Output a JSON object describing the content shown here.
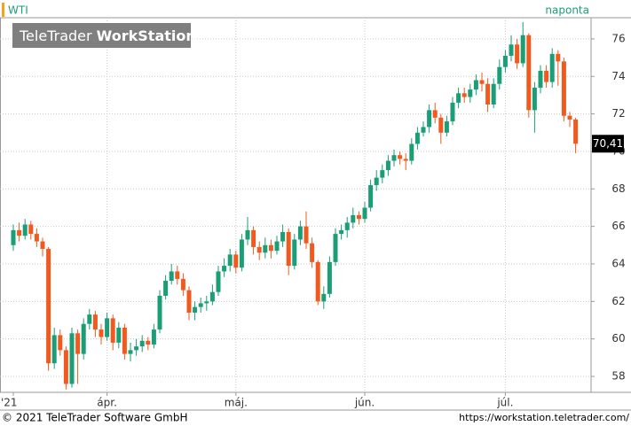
{
  "header": {
    "logo_brand": "TeleTrader",
    "logo_product": "WorkStation"
  },
  "footer": {
    "copyright": "© 2021 TeleTrader Software GmbH",
    "url": "https://workstation.teletrader.com/"
  },
  "chart_data": {
    "type": "candlestick",
    "title": "WTI",
    "subtitle": "naponta",
    "categories": [
      "'21",
      null,
      null,
      null,
      null,
      null,
      null,
      null,
      null,
      null,
      null,
      null,
      null,
      null,
      null,
      null,
      "ápr.",
      null,
      null,
      null,
      null,
      null,
      null,
      null,
      null,
      null,
      null,
      null,
      null,
      null,
      null,
      null,
      null,
      null,
      null,
      null,
      null,
      null,
      "máj.",
      null,
      null,
      null,
      null,
      null,
      null,
      null,
      null,
      null,
      null,
      null,
      null,
      null,
      null,
      null,
      null,
      null,
      null,
      null,
      null,
      null,
      "jún.",
      null,
      null,
      null,
      null,
      null,
      null,
      null,
      null,
      null,
      null,
      null,
      null,
      null,
      null,
      null,
      null,
      null,
      null,
      null,
      null,
      null,
      null,
      null,
      "júl.",
      null,
      null,
      null,
      null,
      null,
      null,
      null,
      null,
      null,
      null,
      null,
      null
    ],
    "series": [
      {
        "name": "WTI",
        "up_color": "#1b9e77",
        "down_color": "#f05a1e",
        "open": [
          65.0,
          65.8,
          65.5,
          66.1,
          65.6,
          65.2,
          64.8,
          58.7,
          60.2,
          59.4,
          57.6,
          60.3,
          59.2,
          60.8,
          61.3,
          60.5,
          60.1,
          61.1,
          59.8,
          60.6,
          59.2,
          59.4,
          59.6,
          59.9,
          59.7,
          60.5,
          62.3,
          63.1,
          63.6,
          63.2,
          62.6,
          61.4,
          61.7,
          61.9,
          62.0,
          62.5,
          63.6,
          63.9,
          64.5,
          63.8,
          65.3,
          65.8,
          64.9,
          64.6,
          65.0,
          64.7,
          65.2,
          65.7,
          63.9,
          65.3,
          66.0,
          65.1,
          64.1,
          62.0,
          62.4,
          64.1,
          65.6,
          65.8,
          66.2,
          66.6,
          66.4,
          67.0,
          68.2,
          68.6,
          69.0,
          69.5,
          69.8,
          69.6,
          69.5,
          70.4,
          71.0,
          71.3,
          72.2,
          71.8,
          71.0,
          71.6,
          72.6,
          73.1,
          72.9,
          73.3,
          73.8,
          73.6,
          72.5,
          73.6,
          74.5,
          75.1,
          75.7,
          74.7,
          76.2,
          72.2,
          73.4,
          74.3,
          73.7,
          75.2,
          74.8,
          71.9,
          71.7
        ],
        "high": [
          66.1,
          66.2,
          66.4,
          66.3,
          65.9,
          65.4,
          64.9,
          60.6,
          60.5,
          59.6,
          60.6,
          60.5,
          61.1,
          61.6,
          61.5,
          60.8,
          61.4,
          61.3,
          60.9,
          60.8,
          59.8,
          60.0,
          60.2,
          60.1,
          60.8,
          62.6,
          63.4,
          64.0,
          63.9,
          63.5,
          62.8,
          62.0,
          62.2,
          62.3,
          62.9,
          63.9,
          64.3,
          64.8,
          64.7,
          65.6,
          66.5,
          66.0,
          65.2,
          65.4,
          65.3,
          65.5,
          66.1,
          65.9,
          65.6,
          66.3,
          66.8,
          65.4,
          64.2,
          62.8,
          64.4,
          65.9,
          66.1,
          66.5,
          67.0,
          66.8,
          67.3,
          68.5,
          69.0,
          69.3,
          69.8,
          70.1,
          70.0,
          69.9,
          70.7,
          71.3,
          71.6,
          72.5,
          72.6,
          72.0,
          71.9,
          72.9,
          73.4,
          73.4,
          73.6,
          74.1,
          74.2,
          73.9,
          73.9,
          74.9,
          75.4,
          76.2,
          76.0,
          76.9,
          76.3,
          73.7,
          74.6,
          74.6,
          75.5,
          75.4,
          75.0,
          72.1,
          71.8
        ],
        "low": [
          64.7,
          65.2,
          65.3,
          65.3,
          64.9,
          64.4,
          58.3,
          58.4,
          59.1,
          57.3,
          57.4,
          57.6,
          58.9,
          60.5,
          60.1,
          59.7,
          59.9,
          59.4,
          59.5,
          58.9,
          58.8,
          59.1,
          59.3,
          59.4,
          59.5,
          60.3,
          62.1,
          62.9,
          62.9,
          62.3,
          61.0,
          61.0,
          61.4,
          61.5,
          61.8,
          62.3,
          63.3,
          63.6,
          63.5,
          63.6,
          65.0,
          64.5,
          64.2,
          64.3,
          64.3,
          64.5,
          64.9,
          63.4,
          63.7,
          65.0,
          64.8,
          63.8,
          61.8,
          61.6,
          62.2,
          63.9,
          65.3,
          65.4,
          65.9,
          66.1,
          66.2,
          66.8,
          67.9,
          68.3,
          68.7,
          69.2,
          69.3,
          69.0,
          69.3,
          70.1,
          70.8,
          71.0,
          71.5,
          70.4,
          70.8,
          71.4,
          72.3,
          72.6,
          72.6,
          73.0,
          73.2,
          72.1,
          72.3,
          73.3,
          74.2,
          74.8,
          74.4,
          74.5,
          71.8,
          71.0,
          73.1,
          73.4,
          73.4,
          73.5,
          71.6,
          71.3,
          69.9
        ],
        "close": [
          65.8,
          65.5,
          66.1,
          65.6,
          65.2,
          64.8,
          58.7,
          60.2,
          59.4,
          57.6,
          60.3,
          59.2,
          60.8,
          61.3,
          60.5,
          60.1,
          61.1,
          59.8,
          60.6,
          59.2,
          59.4,
          59.6,
          59.9,
          59.7,
          60.5,
          62.3,
          63.1,
          63.6,
          63.2,
          62.6,
          61.4,
          61.7,
          61.9,
          62.0,
          62.5,
          63.6,
          63.9,
          64.5,
          63.8,
          65.3,
          65.8,
          64.9,
          64.6,
          65.0,
          64.7,
          65.2,
          65.7,
          63.9,
          65.3,
          66.0,
          65.1,
          64.1,
          62.0,
          62.4,
          64.1,
          65.6,
          65.8,
          66.2,
          66.6,
          66.4,
          67.0,
          68.2,
          68.6,
          69.0,
          69.5,
          69.8,
          69.6,
          69.5,
          70.4,
          71.0,
          71.3,
          72.2,
          71.8,
          71.0,
          71.6,
          72.6,
          73.1,
          72.9,
          73.3,
          73.8,
          73.6,
          72.5,
          73.6,
          74.5,
          75.1,
          75.7,
          74.7,
          76.2,
          72.2,
          73.4,
          74.3,
          73.7,
          75.2,
          74.8,
          71.9,
          71.7,
          70.41
        ]
      }
    ],
    "last_price": {
      "value": 70.41,
      "label": "70,41"
    },
    "ylim": [
      57.15,
      77.13
    ],
    "yticks": [
      58,
      60,
      62,
      64,
      66,
      68,
      70,
      72,
      74,
      76
    ],
    "grid": true
  }
}
